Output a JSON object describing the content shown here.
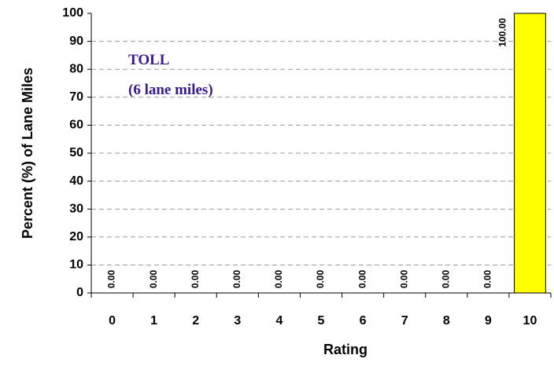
{
  "chart_data": {
    "type": "bar",
    "categories": [
      "0",
      "1",
      "2",
      "3",
      "4",
      "5",
      "6",
      "7",
      "8",
      "9",
      "10"
    ],
    "values": [
      0,
      0,
      0,
      0,
      0,
      0,
      0,
      0,
      0,
      0,
      100
    ],
    "value_labels": [
      "0.00",
      "0.00",
      "0.00",
      "0.00",
      "0.00",
      "0.00",
      "0.00",
      "0.00",
      "0.00",
      "0.00",
      "100.00"
    ],
    "color": "#ffff00",
    "xlabel": "Rating",
    "ylabel": "Percent (%) of Lane Miles",
    "annotations": [
      "TOLL",
      "(6 lane miles)"
    ],
    "ylim": [
      0,
      100
    ],
    "yticks": [
      0,
      10,
      20,
      30,
      40,
      50,
      60,
      70,
      80,
      90,
      100
    ],
    "grid": true
  }
}
